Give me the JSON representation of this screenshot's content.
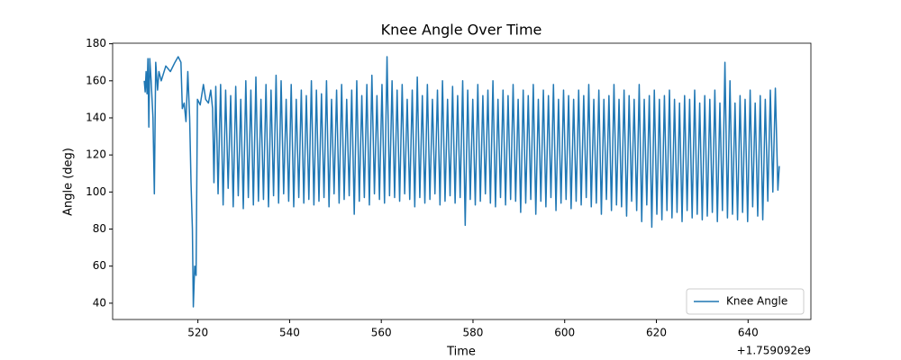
{
  "chart_data": {
    "type": "line",
    "title": "Knee Angle Over Time",
    "xlabel": "Time",
    "ylabel": "Angle (deg)",
    "x_offset_label": "+1.759092e9",
    "xlim": [
      501.4,
      653.7
    ],
    "ylim": [
      31.2,
      180.3
    ],
    "xticks": [
      520,
      540,
      560,
      580,
      600,
      620,
      640
    ],
    "yticks": [
      40,
      60,
      80,
      100,
      120,
      140,
      160,
      180
    ],
    "legend": "lower right",
    "x": [
      508.3,
      508.5,
      508.7,
      508.9,
      509.1,
      509.3,
      509.5,
      509.8,
      510.2,
      510.5,
      510.8,
      511.2,
      511.5,
      512,
      513,
      514,
      515,
      515.7,
      516.3,
      516.6,
      517,
      517.4,
      517.8,
      518.2,
      518.5,
      518.8,
      519,
      519.3,
      519.6,
      519.9,
      520.5,
      521.2,
      521.7,
      522.3,
      522.8,
      523.2,
      523.5,
      523.9,
      524.4,
      524.95,
      525.5,
      526.05,
      526.6,
      527.15,
      527.7,
      528.25,
      528.8,
      529.35,
      529.9,
      530.45,
      531.0,
      531.55,
      532.1,
      532.65,
      533.2,
      533.75,
      534.3,
      534.85,
      535.4,
      535.95,
      536.5,
      537.05,
      537.6,
      538.15,
      538.7,
      539.25,
      539.8,
      540.35,
      540.9,
      541.45,
      542.0,
      542.55,
      543.1,
      543.65,
      544.2,
      544.75,
      545.3,
      545.85,
      546.4,
      546.95,
      547.5,
      548.05,
      548.6,
      549.15,
      549.7,
      550.25,
      550.8,
      551.35,
      551.9,
      552.45,
      553.0,
      553.55,
      554.1,
      554.65,
      555.2,
      555.75,
      556.3,
      556.85,
      557.4,
      557.95,
      558.5,
      559.05,
      559.6,
      560.15,
      560.7,
      561.25,
      561.8,
      562.35,
      562.9,
      563.45,
      564.0,
      564.55,
      565.1,
      565.65,
      566.2,
      566.75,
      567.3,
      567.85,
      568.4,
      568.95,
      569.5,
      570.05,
      570.6,
      571.15,
      571.7,
      572.25,
      572.8,
      573.35,
      573.9,
      574.45,
      575.0,
      575.55,
      576.1,
      576.65,
      577.2,
      577.75,
      578.3,
      578.85,
      579.4,
      579.95,
      580.5,
      581.05,
      581.6,
      582.15,
      582.7,
      583.25,
      583.8,
      584.35,
      584.9,
      585.45,
      586.0,
      586.55,
      587.1,
      587.65,
      588.2,
      588.75,
      589.3,
      589.85,
      590.4,
      590.95,
      591.5,
      592.05,
      592.6,
      593.15,
      593.7,
      594.25,
      594.8,
      595.35,
      595.9,
      596.45,
      597.0,
      597.55,
      598.1,
      598.65,
      599.2,
      599.75,
      600.3,
      600.85,
      601.4,
      601.95,
      602.5,
      603.05,
      603.6,
      604.15,
      604.7,
      605.25,
      605.8,
      606.35,
      606.9,
      607.45,
      608.0,
      608.55,
      609.1,
      609.65,
      610.2,
      610.75,
      611.3,
      611.85,
      612.4,
      612.95,
      613.5,
      614.05,
      614.6,
      615.15,
      615.7,
      616.25,
      616.8,
      617.35,
      617.9,
      618.45,
      619.0,
      619.55,
      620.1,
      620.65,
      621.2,
      621.75,
      622.3,
      622.85,
      623.4,
      623.95,
      624.5,
      625.05,
      625.6,
      626.15,
      626.7,
      627.25,
      627.8,
      628.35,
      628.9,
      629.45,
      630.0,
      630.55,
      631.1,
      631.65,
      632.2,
      632.75,
      633.3,
      633.85,
      634.4,
      634.95,
      635.5,
      636.05,
      636.6,
      637.15,
      637.7,
      638.25,
      638.8,
      639.35,
      639.9,
      640.45,
      641.0,
      641.55,
      642.1,
      642.65,
      643.2,
      643.75,
      644.3,
      644.85,
      645.4,
      645.95,
      646.5,
      646.8
    ],
    "series": [
      {
        "name": "Knee Angle",
        "color": "#1f77b4",
        "values": [
          160,
          154,
          165,
          153,
          172,
          135,
          172,
          160,
          140,
          99,
          170,
          155,
          165,
          160,
          168,
          165,
          170,
          173,
          170,
          145,
          148,
          138,
          165,
          140,
          105,
          80,
          38,
          60,
          55,
          150,
          147,
          158,
          150,
          148,
          155,
          145,
          105,
          157,
          99,
          158,
          93,
          155,
          102,
          152,
          92,
          157,
          98,
          150,
          91,
          160,
          97,
          155,
          93,
          162,
          95,
          150,
          96,
          158,
          92,
          155,
          98,
          163,
          94,
          160,
          99,
          150,
          95,
          158,
          92,
          150,
          97,
          155,
          94,
          152,
          96,
          160,
          93,
          155,
          95,
          153,
          97,
          160,
          92,
          150,
          99,
          155,
          94,
          158,
          96,
          150,
          98,
          155,
          88,
          160,
          95,
          152,
          97,
          158,
          93,
          163,
          99,
          152,
          96,
          158,
          94,
          173,
          98,
          160,
          97,
          155,
          95,
          158,
          99,
          150,
          96,
          155,
          92,
          162,
          97,
          152,
          94,
          158,
          96,
          150,
          99,
          155,
          93,
          160,
          95,
          150,
          98,
          157,
          94,
          152,
          97,
          160,
          82,
          155,
          96,
          150,
          93,
          158,
          95,
          152,
          99,
          155,
          94,
          160,
          92,
          150,
          97,
          155,
          93,
          152,
          96,
          158,
          95,
          150,
          89,
          155,
          94,
          152,
          96,
          158,
          88,
          150,
          95,
          155,
          92,
          152,
          97,
          158,
          90,
          150,
          94,
          155,
          96,
          152,
          91,
          150,
          95,
          155,
          93,
          152,
          97,
          158,
          92,
          150,
          94,
          155,
          88,
          150,
          96,
          152,
          90,
          158,
          93,
          150,
          92,
          155,
          87,
          152,
          95,
          150,
          90,
          158,
          84,
          150,
          93,
          152,
          81,
          155,
          88,
          150,
          85,
          152,
          90,
          155,
          86,
          150,
          89,
          148,
          84,
          152,
          90,
          150,
          86,
          155,
          88,
          148,
          85,
          152,
          87,
          150,
          89,
          155,
          84,
          148,
          90,
          170,
          86,
          160,
          88,
          148,
          85,
          152,
          89,
          150,
          84,
          155,
          92,
          148,
          87,
          152,
          85,
          150,
          95,
          155,
          100,
          156,
          101,
          114
        ]
      }
    ]
  }
}
